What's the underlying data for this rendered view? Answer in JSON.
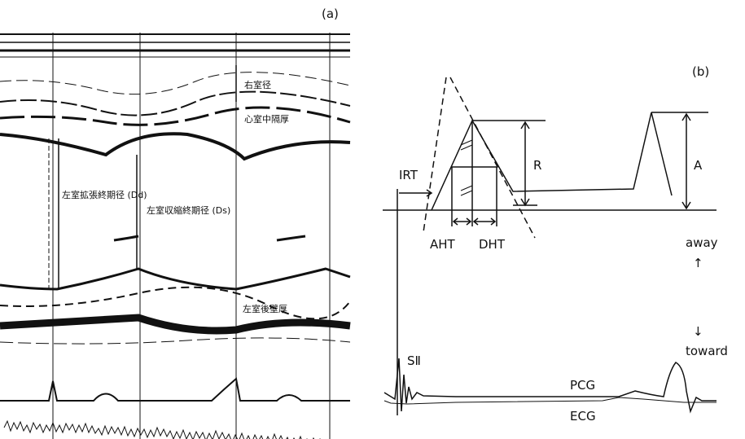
{
  "panel_a": {
    "label": "(a)",
    "annotations": [
      "右室径",
      "心室中隔厚",
      "左室拡張終期径 (Dd)",
      "左室収縮終期径 (Ds)",
      "左室後壁厚"
    ]
  },
  "panel_b": {
    "label": "(b)",
    "labels": {
      "irt": "IRT",
      "r": "R",
      "a": "A",
      "aht": "AHT",
      "dht": "DHT",
      "away": "away",
      "up_arrow": "↑",
      "down_arrow": "↓",
      "toward": "toward",
      "s2": "SⅡ",
      "pcg": "PCG",
      "ecg": "ECG"
    }
  }
}
